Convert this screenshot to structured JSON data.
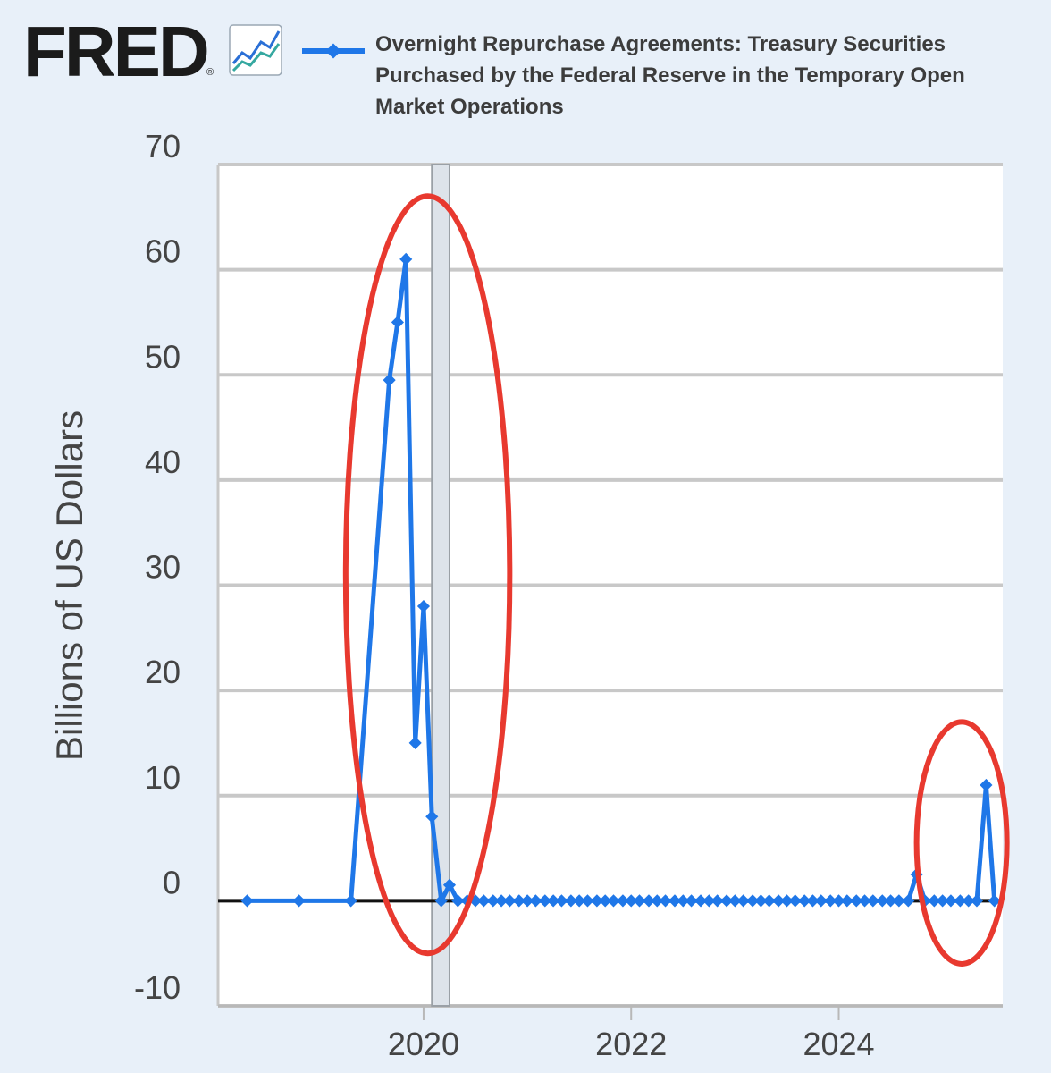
{
  "header": {
    "logo_text": "FRED",
    "logo_mark": "®",
    "logo_icon": "line-chart-icon",
    "legend_label": "Overnight Repurchase Agreements: Treasury Securities Purchased by the Federal Reserve in the Temporary Open Market Operations"
  },
  "colors": {
    "series": "#1f77e8",
    "annotation": "#e8392f",
    "zero_line": "#111111",
    "grid": "#c8c8c8",
    "recession": "#dde3ea"
  },
  "chart_data": {
    "type": "line",
    "title": "Overnight Repurchase Agreements: Treasury Securities Purchased by the Federal Reserve in the Temporary Open Market Operations",
    "xlabel": "",
    "ylabel": "Billions of US Dollars",
    "xlim": [
      2018.02,
      2025.58
    ],
    "ylim": [
      -10,
      70
    ],
    "y_ticks": [
      70,
      60,
      50,
      40,
      30,
      20,
      10,
      0,
      -10
    ],
    "x_ticks": [
      2020,
      2022,
      2024
    ],
    "x_tick_labels": [
      "2020",
      "2022",
      "2024"
    ],
    "grid": true,
    "recession_band": [
      2020.08,
      2020.25
    ],
    "series": [
      {
        "name": "Overnight Repurchase Agreements: Treasury Securities Purchased by the Federal Reserve in the Temporary Open Market Operations",
        "x": [
          2018.3,
          2018.8,
          2019.3,
          2019.67,
          2019.75,
          2019.83,
          2019.92,
          2020.0,
          2020.08,
          2020.17,
          2020.25,
          2020.33,
          2020.42,
          2020.5,
          2020.58,
          2020.67,
          2020.75,
          2020.83,
          2020.92,
          2021.0,
          2021.08,
          2021.17,
          2021.25,
          2021.33,
          2021.42,
          2021.5,
          2021.58,
          2021.67,
          2021.75,
          2021.83,
          2021.92,
          2022.0,
          2022.08,
          2022.17,
          2022.25,
          2022.33,
          2022.42,
          2022.5,
          2022.58,
          2022.67,
          2022.75,
          2022.83,
          2022.92,
          2023.0,
          2023.08,
          2023.17,
          2023.25,
          2023.33,
          2023.42,
          2023.5,
          2023.58,
          2023.67,
          2023.75,
          2023.83,
          2023.92,
          2024.0,
          2024.08,
          2024.17,
          2024.25,
          2024.33,
          2024.42,
          2024.5,
          2024.58,
          2024.67,
          2024.75,
          2024.83,
          2024.92,
          2025.0,
          2025.08,
          2025.17,
          2025.25,
          2025.33,
          2025.42,
          2025.5
        ],
        "values": [
          0,
          0,
          0,
          49.5,
          55,
          61,
          15,
          28,
          8,
          0,
          1.5,
          0,
          0,
          0,
          0,
          0,
          0,
          0,
          0,
          0,
          0,
          0,
          0,
          0,
          0,
          0,
          0,
          0,
          0,
          0,
          0,
          0,
          0,
          0,
          0,
          0,
          0,
          0,
          0,
          0,
          0,
          0,
          0,
          0,
          0,
          0,
          0,
          0,
          0,
          0,
          0,
          0,
          0,
          0,
          0,
          0,
          0,
          0,
          0,
          0,
          0,
          0,
          0,
          0,
          2.5,
          0,
          0,
          0,
          0,
          0,
          0,
          0,
          11,
          0
        ]
      }
    ],
    "annotations": [
      {
        "type": "ellipse",
        "shape": "circled region",
        "x_range": [
          2019.25,
          2020.83
        ],
        "y_range": [
          -5,
          67
        ]
      },
      {
        "type": "ellipse",
        "shape": "circled region",
        "x_range": [
          2024.75,
          2025.62
        ],
        "y_range": [
          -6,
          17
        ]
      }
    ]
  }
}
